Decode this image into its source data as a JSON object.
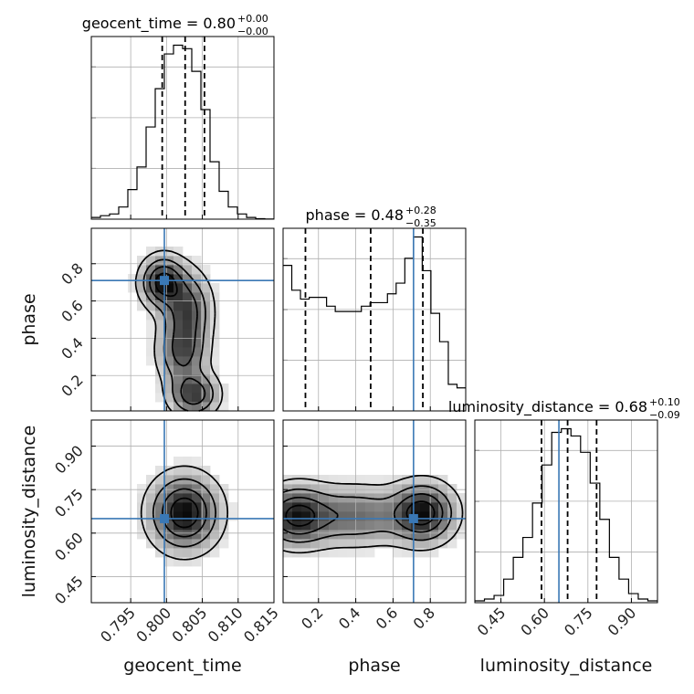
{
  "chart_data": {
    "type": "corner",
    "parameters": [
      "geocent_time",
      "phase",
      "luminosity_distance"
    ],
    "titles": [
      {
        "name": "geocent_time",
        "median": "0.80",
        "plus": "+0.00",
        "minus": "−0.00"
      },
      {
        "name": "phase",
        "median": "0.48",
        "plus": "+0.28",
        "minus": "−0.35"
      },
      {
        "name": "luminosity_distance",
        "median": "0.68",
        "plus": "+0.10",
        "minus": "−0.09"
      }
    ],
    "truths": {
      "geocent_time": 0.7997,
      "phase": 0.71,
      "luminosity_distance": 0.65
    },
    "ranges": {
      "geocent_time": [
        0.7895,
        0.815
      ],
      "phase": [
        0.01,
        0.99
      ],
      "luminosity_distance": [
        0.36,
        0.99
      ]
    },
    "ticks": {
      "geocent_time": [
        "0.795",
        "0.800",
        "0.805",
        "0.810",
        "0.815"
      ],
      "phase": [
        "0.2",
        "0.4",
        "0.6",
        "0.8"
      ],
      "luminosity_distance": [
        "0.45",
        "0.60",
        "0.75",
        "0.90"
      ]
    },
    "quantiles": {
      "geocent_time": [
        0.7994,
        0.8026,
        0.8053
      ],
      "phase": [
        0.13,
        0.48,
        0.76
      ],
      "luminosity_distance": [
        0.59,
        0.68,
        0.78
      ]
    },
    "histograms": {
      "geocent_time": [
        0.01,
        0.02,
        0.03,
        0.07,
        0.17,
        0.3,
        0.53,
        0.75,
        0.95,
        1.0,
        0.98,
        0.85,
        0.63,
        0.33,
        0.16,
        0.07,
        0.03,
        0.01,
        0.003,
        0.001
      ],
      "phase": [
        0.82,
        0.68,
        0.63,
        0.64,
        0.64,
        0.59,
        0.56,
        0.56,
        0.56,
        0.59,
        0.61,
        0.61,
        0.66,
        0.72,
        0.86,
        0.98,
        0.79,
        0.55,
        0.39,
        0.15,
        0.13
      ],
      "luminosity_distance": [
        0.01,
        0.02,
        0.04,
        0.13,
        0.25,
        0.36,
        0.55,
        0.76,
        0.94,
        0.96,
        0.92,
        0.83,
        0.66,
        0.46,
        0.25,
        0.13,
        0.05,
        0.02,
        0.01
      ]
    }
  }
}
